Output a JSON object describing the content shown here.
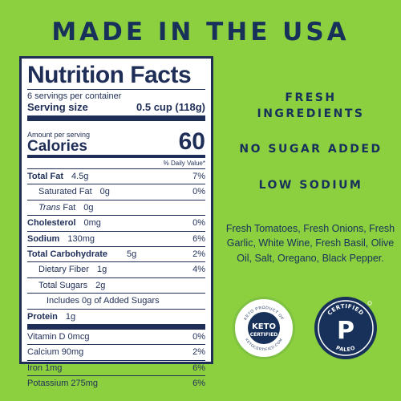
{
  "headline": "MADE IN THE USA",
  "nutrition": {
    "title": "Nutrition Facts",
    "servings": "6 servings per container",
    "serving_label": "Serving size",
    "serving_value": "0.5 cup (118g)",
    "amount_per_serving": "Amount per serving",
    "calories_label": "Calories",
    "calories_value": "60",
    "dv_header": "% Daily Value*",
    "rows": [
      {
        "label": "Total Fat",
        "amount": "4.5g",
        "dv": "7%"
      },
      {
        "label": "Saturated Fat",
        "amount": "0g",
        "dv": "0%"
      },
      {
        "label": "Trans",
        "label_suffix": "Fat",
        "amount": "0g",
        "dv": ""
      },
      {
        "label": "Cholesterol",
        "amount": "0mg",
        "dv": "0%"
      },
      {
        "label": "Sodium",
        "amount": "130mg",
        "dv": "6%"
      },
      {
        "label": "Total Carbohydrate",
        "amount": "5g",
        "dv": "2%"
      },
      {
        "label": "Dietary Fiber",
        "amount": "1g",
        "dv": "4%"
      },
      {
        "label": "Total Sugars",
        "amount": "2g",
        "dv": ""
      },
      {
        "label": "Includes 0g of Added Sugars",
        "amount": "",
        "dv": ""
      },
      {
        "label": "Protein",
        "amount": "1g",
        "dv": ""
      },
      {
        "label": "Vitamin D 0mcg",
        "amount": "",
        "dv": "0%"
      },
      {
        "label": "Calcium 90mg",
        "amount": "",
        "dv": "2%"
      },
      {
        "label": "Iron 1mg",
        "amount": "",
        "dv": "6%"
      },
      {
        "label": "Potassium 275mg",
        "amount": "",
        "dv": "6%"
      }
    ]
  },
  "claims": [
    "FRESH INGREDIENTS",
    "NO SUGAR ADDED",
    "LOW SODIUM"
  ],
  "claim_lines": {
    "fresh_1": "FRESH",
    "fresh_2": "INGREDIENTS"
  },
  "ingredients": "Fresh Tomatoes, Fresh Onions, Fresh Garlic, White Wine, Fresh Basil, Olive Oil, Salt, Oregano, Black Pepper.",
  "badges": {
    "keto": {
      "top": "KETO",
      "bottom": "CERTIFIED",
      "ring_top": "KETO PRODUCT OF",
      "ring_bottom": "KETOCERTIFIED.COM"
    },
    "paleo": {
      "top": "CERTIFIED",
      "letter": "P",
      "bottom": "PALEO"
    }
  },
  "colors": {
    "background": "#8ccf3f",
    "navy": "#17315b",
    "panel_border": "#1f2e57",
    "badge_green": "#7fc241"
  }
}
